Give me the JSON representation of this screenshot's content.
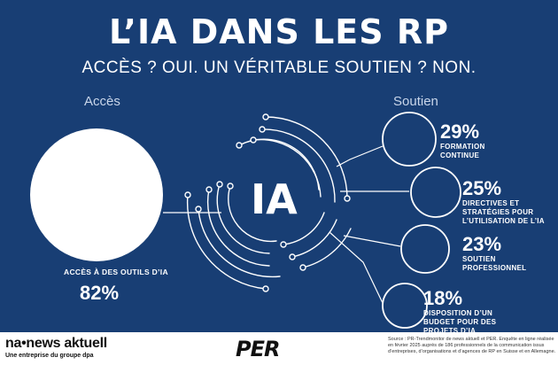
{
  "title": "L’IA DANS LES RP",
  "subtitle": "ACCÈS ? OUI. UN VÉRITABLE SOUTIEN ? NON.",
  "acces": {
    "label": "Accès",
    "text": "ACCÈS À DES OUTILS D’IA",
    "value": "82%"
  },
  "center": {
    "label": "IA"
  },
  "soutien": {
    "label": "Soutien",
    "items": [
      {
        "value": "29%",
        "text": "FORMATION CONTINUE"
      },
      {
        "value": "25%",
        "text": "DIRECTIVES ET STRATÉGIES POUR L’UTILISATION DE L’IA"
      },
      {
        "value": "23%",
        "text": "SOUTIEN PROFESSIONNEL"
      },
      {
        "value": "18%",
        "text": "DISPOSITION D’UN BUDGET POUR DES PROJETS D’IA"
      }
    ]
  },
  "footer": {
    "logo": "na•news aktuell",
    "tagline": "Une entreprise du groupe dpa",
    "per_logo": "PER",
    "source": "Source : PR-Trendmonitor de news aktuell et PER. Enquête en ligne réalisée en février 2025 auprès de 186 professionnels de la communication issus d’entreprises, d’organisations et d’agences de RP en Suisse et en Allemagne."
  },
  "colors": {
    "background": "#183e74",
    "foreground": "#ffffff"
  }
}
